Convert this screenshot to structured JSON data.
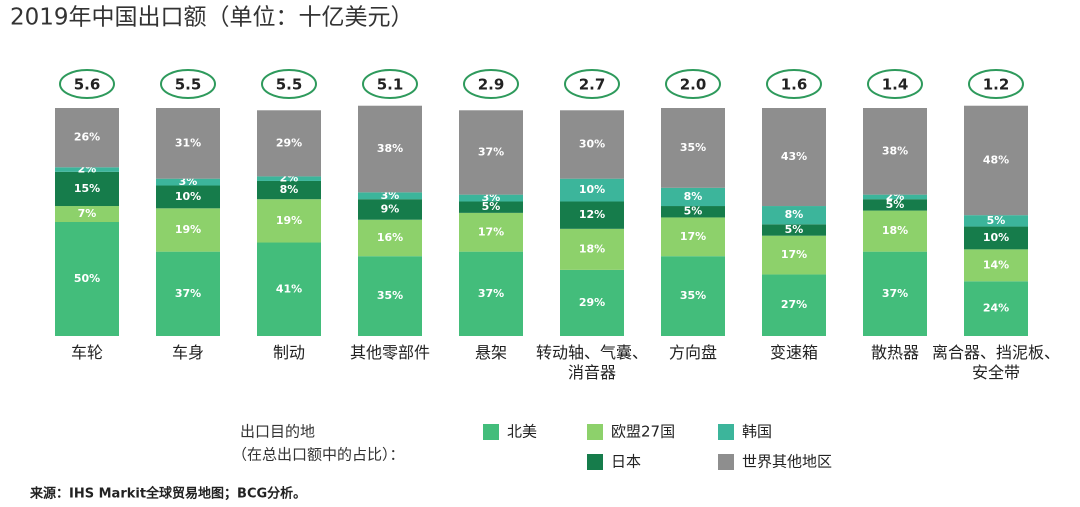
{
  "chart_data": {
    "type": "stacked_bar",
    "title": "2019年中国出口额（单位：十亿美元）",
    "categories": [
      "车轮",
      "车身",
      "制动",
      "其他零部件",
      "悬架",
      "转动轴、气囊、\n消音器",
      "方向盘",
      "变速箱",
      "散热器",
      "离合器、挡泥板、\n安全带"
    ],
    "totals": {
      "values": [
        5.6,
        5.5,
        5.5,
        5.1,
        2.9,
        2.7,
        2.0,
        1.6,
        1.4,
        1.2
      ],
      "value_labels": [
        "5.6",
        "5.5",
        "5.5",
        "5.1",
        "2.9",
        "2.7",
        "2.0",
        "1.6",
        "1.4",
        "1.2"
      ],
      "color": "#2e9a5c"
    },
    "ylim": [
      0,
      100
    ],
    "series": [
      {
        "name": "北美",
        "color": "#43bd7b",
        "values": [
          50,
          37,
          41,
          35,
          37,
          29,
          35,
          27,
          37,
          24
        ],
        "value_labels": [
          "50%",
          "37%",
          "41%",
          "35%",
          "37%",
          "29%",
          "35%",
          "27%",
          "37%",
          "24%"
        ]
      },
      {
        "name": "欧盟27国",
        "color": "#8dd16b",
        "values": [
          7,
          19,
          19,
          16,
          17,
          18,
          17,
          17,
          18,
          14
        ],
        "value_labels": [
          "7%",
          "19%",
          "19%",
          "16%",
          "17%",
          "18%",
          "17%",
          "17%",
          "18%",
          "14%"
        ]
      },
      {
        "name": "日本",
        "color": "#167c4b",
        "values": [
          15,
          10,
          8,
          9,
          5,
          12,
          5,
          5,
          5,
          10
        ],
        "value_labels": [
          "15%",
          "10%",
          "8%",
          "9%",
          "5%",
          "12%",
          "5%",
          "5%",
          "5%",
          "10%"
        ]
      },
      {
        "name": "韩国",
        "color": "#3cb59b",
        "values": [
          2,
          3,
          2,
          3,
          3,
          10,
          8,
          8,
          2,
          5
        ],
        "value_labels": [
          "2%",
          "3%",
          "2%",
          "3%",
          "3%",
          "10%",
          "8%",
          "8%",
          "2%",
          "5%"
        ]
      },
      {
        "name": "世界其他地区",
        "color": "#8e8e8e",
        "values": [
          26,
          31,
          29,
          38,
          37,
          30,
          35,
          43,
          38,
          48
        ],
        "value_labels": [
          "26%",
          "31%",
          "29%",
          "38%",
          "37%",
          "30%",
          "35%",
          "43%",
          "38%",
          "48%"
        ]
      }
    ],
    "legend_title": [
      "出口目的地",
      "（在总出口额中的占比）："
    ],
    "source": "来源：IHS Markit全球贸易地图；BCG分析。"
  }
}
